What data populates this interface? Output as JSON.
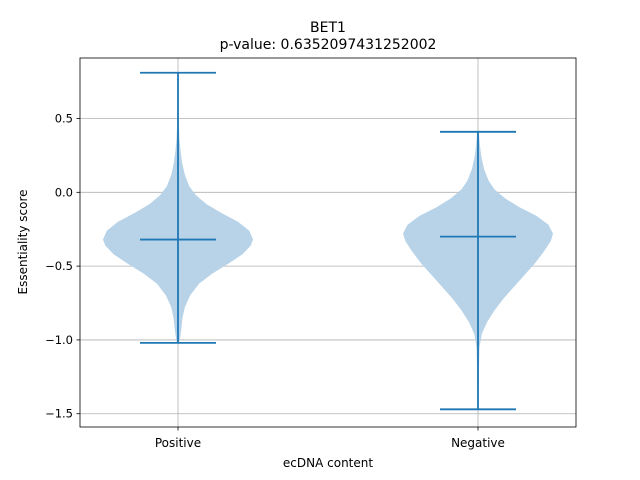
{
  "chart_data": {
    "type": "violin",
    "title": "BET1",
    "subtitle": "p-value: 0.6352097431252002",
    "xlabel": "ecDNA content",
    "ylabel": "Essentiality score",
    "categories": [
      "Positive",
      "Negative"
    ],
    "ylim": [
      -1.59,
      0.91
    ],
    "yticks": [
      0.5,
      0.0,
      -0.5,
      -1.0,
      -1.5
    ],
    "ytick_labels": [
      "0.5",
      "0.0",
      "−0.5",
      "−1.0",
      "−1.5"
    ],
    "grid": true,
    "color": "#1f77b4",
    "body_color": "#b8d3e8",
    "violins": [
      {
        "category": "Positive",
        "max": 0.81,
        "min": -1.02,
        "mean": -0.32,
        "profile": [
          [
            -1.02,
            0.015
          ],
          [
            -0.98,
            0.03
          ],
          [
            -0.92,
            0.045
          ],
          [
            -0.85,
            0.06
          ],
          [
            -0.78,
            0.09
          ],
          [
            -0.7,
            0.16
          ],
          [
            -0.62,
            0.28
          ],
          [
            -0.55,
            0.46
          ],
          [
            -0.48,
            0.68
          ],
          [
            -0.42,
            0.86
          ],
          [
            -0.36,
            0.97
          ],
          [
            -0.32,
            1.0
          ],
          [
            -0.26,
            0.95
          ],
          [
            -0.2,
            0.8
          ],
          [
            -0.14,
            0.58
          ],
          [
            -0.08,
            0.38
          ],
          [
            -0.02,
            0.24
          ],
          [
            0.04,
            0.15
          ],
          [
            0.12,
            0.09
          ],
          [
            0.2,
            0.055
          ],
          [
            0.28,
            0.035
          ],
          [
            0.36,
            0.02
          ],
          [
            0.45,
            0.012
          ],
          [
            0.55,
            0.008
          ],
          [
            0.65,
            0.005
          ],
          [
            0.75,
            0.003
          ],
          [
            0.81,
            0.002
          ]
        ]
      },
      {
        "category": "Negative",
        "max": 0.41,
        "min": -1.47,
        "mean": -0.3,
        "profile": [
          [
            -1.47,
            0.006
          ],
          [
            -1.35,
            0.008
          ],
          [
            -1.2,
            0.012
          ],
          [
            -1.05,
            0.02
          ],
          [
            -0.96,
            0.05
          ],
          [
            -0.88,
            0.12
          ],
          [
            -0.8,
            0.22
          ],
          [
            -0.72,
            0.34
          ],
          [
            -0.64,
            0.48
          ],
          [
            -0.56,
            0.62
          ],
          [
            -0.48,
            0.76
          ],
          [
            -0.4,
            0.88
          ],
          [
            -0.33,
            0.97
          ],
          [
            -0.28,
            1.0
          ],
          [
            -0.22,
            0.94
          ],
          [
            -0.16,
            0.78
          ],
          [
            -0.1,
            0.55
          ],
          [
            -0.04,
            0.36
          ],
          [
            0.02,
            0.22
          ],
          [
            0.08,
            0.14
          ],
          [
            0.16,
            0.08
          ],
          [
            0.24,
            0.045
          ],
          [
            0.32,
            0.025
          ],
          [
            0.41,
            0.012
          ]
        ]
      }
    ]
  }
}
